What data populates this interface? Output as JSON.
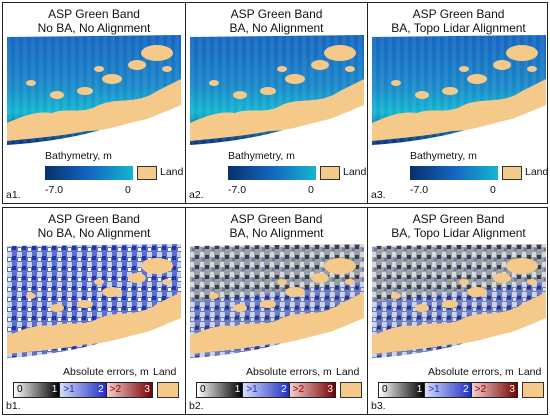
{
  "top_row": {
    "panels": [
      {
        "title_line1": "ASP Green Band",
        "title_line2": "No BA, No Alignment",
        "label": "a1."
      },
      {
        "title_line1": "ASP Green Band",
        "title_line2": "BA, No Alignment",
        "label": "a2."
      },
      {
        "title_line1": "ASP Green Band",
        "title_line2": "BA, Topo Lidar Alignment",
        "label": "a3."
      }
    ],
    "legend": {
      "title": "Bathymetry, m",
      "min_label": "-7.0",
      "max_label": "0",
      "land_label": "Land"
    }
  },
  "bottom_row": {
    "panels": [
      {
        "title_line1": "ASP Green Band",
        "title_line2": "No BA, No Alignment",
        "label": "b1."
      },
      {
        "title_line1": "ASP Green Band",
        "title_line2": "BA, No Alignment",
        "label": "b2."
      },
      {
        "title_line1": "ASP Green Band",
        "title_line2": "BA, Topo Lidar Alignment",
        "label": "b3."
      }
    ],
    "legend": {
      "title": "Absolute errors, m",
      "land_label": "Land",
      "classes": [
        {
          "low": "0",
          "high": "1"
        },
        {
          "low": ">1",
          "high": "2"
        },
        {
          "low": ">2",
          "high": "3"
        }
      ]
    }
  },
  "colors": {
    "land": "#f5c98a",
    "bathy_deep": "#08306b",
    "bathy_shallow": "#13b5d1",
    "err_low": "#000000",
    "err_mid": "#1f2fc8",
    "err_high": "#7a0000"
  }
}
